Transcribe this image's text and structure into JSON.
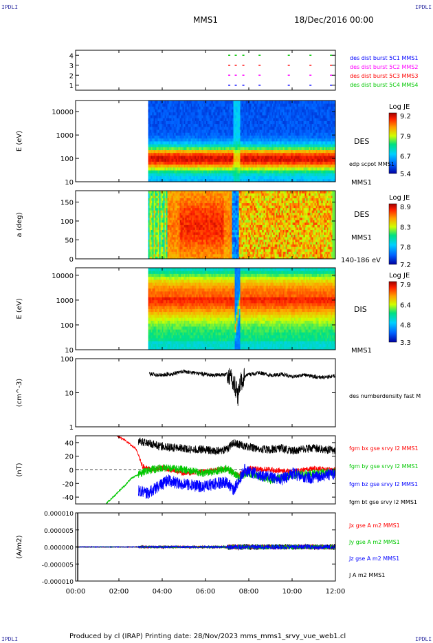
{
  "header": {
    "corner_tl": "IPDLI",
    "corner_tr": "IPDLI",
    "corner_bl": "IPDLI",
    "corner_br": "IPDLI",
    "mission": "MMS1",
    "date": "18/Dec/2016 00:00"
  },
  "footer": {
    "text": "Produced by cl (IRAP)   Printing date: 28/Nov/2023   mms_mms1_srvy_vue_web1.cl"
  },
  "colors": {
    "blue": "#0000ff",
    "magenta": "#ff00ff",
    "red": "#ff0000",
    "green": "#00c800",
    "black": "#000000"
  },
  "chart_data": [
    {
      "type": "scatter",
      "panel": "availability",
      "ylim": [
        0.5,
        4.5
      ],
      "yticks": [
        "1",
        "2",
        "3",
        "4"
      ],
      "labels": [
        {
          "text": "des dist burst 5C1 MMS1",
          "color": "#0000ff"
        },
        {
          "text": "des dist burst 5C2 MMS2",
          "color": "#ff00ff"
        },
        {
          "text": "des dist burst 5C3 MMS3",
          "color": "#ff0000"
        },
        {
          "text": "des dist burst 5C4 MMS4",
          "color": "#00c800"
        }
      ],
      "series": [
        {
          "name": "des dist burst 5C4 MMS4",
          "y": 4,
          "x": [
            7.05,
            7.35,
            7.7,
            8.45,
            9.8,
            10.8,
            11.75
          ]
        },
        {
          "name": "des dist burst 5C3 MMS3",
          "y": 3,
          "x": [
            7.05,
            7.35,
            7.7,
            8.45,
            9.8,
            10.8,
            11.75
          ]
        },
        {
          "name": "des dist burst 5C2 MMS2",
          "y": 2,
          "x": [
            7.05,
            7.35,
            7.7,
            8.45,
            9.8,
            10.8,
            11.75
          ]
        },
        {
          "name": "des dist burst 5C1 MMS1",
          "y": 1,
          "x": [
            7.05,
            7.35,
            7.7,
            8.45,
            9.8,
            10.8,
            11.75
          ]
        }
      ]
    },
    {
      "type": "heatmap",
      "panel": "des_energy",
      "ylabel": "E (eV)",
      "yscale": "log",
      "ylim": [
        10,
        30000
      ],
      "yticks": [
        "10",
        "100",
        "1000",
        "10000"
      ],
      "data_start_hour": 3.35,
      "side_label": "DES",
      "sub_label": "edp scpot MMS1",
      "bottom_label": "MMS1",
      "colorbar": {
        "title": "Log JE",
        "ticks": [
          "9.2",
          "7.9",
          "6.7",
          "5.4"
        ]
      },
      "peak_energy_eV": 100
    },
    {
      "type": "heatmap",
      "panel": "des_pitch",
      "ylabel": "a (deg)",
      "ylim": [
        0,
        180
      ],
      "yticks": [
        "0",
        "50",
        "100",
        "150"
      ],
      "data_start_hour": 3.35,
      "side_label": "DES",
      "sub_label": "MMS1",
      "bottom_label": "140-186 eV",
      "colorbar": {
        "title": "Log JE",
        "ticks": [
          "8.9",
          "8.3",
          "7.8",
          "7.2"
        ]
      }
    },
    {
      "type": "heatmap",
      "panel": "dis_energy",
      "ylabel": "E (eV)",
      "yscale": "log",
      "ylim": [
        10,
        20000
      ],
      "yticks": [
        "10",
        "100",
        "1000",
        "10000"
      ],
      "data_start_hour": 3.35,
      "side_label": "DIS",
      "bottom_label": "MMS1",
      "colorbar": {
        "title": "Log JE",
        "ticks": [
          "7.9",
          "6.4",
          "4.8",
          "3.3"
        ]
      },
      "peak_energy_eV": 1500
    },
    {
      "type": "line",
      "panel": "density",
      "ylabel": "(cm^-3)",
      "yscale": "log",
      "ylim": [
        1,
        100
      ],
      "yticks": [
        "1",
        "10",
        "100"
      ],
      "series": [
        {
          "name": "des numberdensity fast M",
          "color": "#000000",
          "x": [
            3.4,
            4.0,
            4.5,
            5.0,
            5.5,
            6.0,
            6.5,
            7.0,
            7.3,
            7.5,
            7.7,
            8.0,
            8.5,
            9.0,
            9.5,
            10.0,
            10.5,
            11.0,
            11.5,
            12.0
          ],
          "y": [
            35,
            33,
            36,
            42,
            38,
            34,
            33,
            35,
            20,
            8,
            25,
            35,
            38,
            32,
            35,
            30,
            33,
            30,
            28,
            32
          ]
        }
      ]
    },
    {
      "type": "line",
      "panel": "magnetic_field",
      "ylabel": "(nT)",
      "ylim": [
        -50,
        50
      ],
      "yticks": [
        "-40",
        "-20",
        "0",
        "20",
        "40"
      ],
      "series": [
        {
          "name": "fgm bx gse srvy l2 MMS1",
          "color": "#ff0000",
          "x": [
            1.9,
            2.2,
            2.5,
            2.8,
            3.1,
            3.5,
            4.0,
            5.0,
            6.0,
            7.0,
            7.5,
            8.0,
            9.0,
            10.0,
            11.0,
            12.0
          ],
          "y": [
            50,
            45,
            38,
            30,
            5,
            0,
            3,
            -5,
            -2,
            2,
            -8,
            2,
            0,
            -3,
            2,
            0
          ]
        },
        {
          "name": "fgm by gse srvy l2 MMS1",
          "color": "#00c800",
          "x": [
            1.4,
            1.8,
            2.2,
            2.6,
            3.0,
            3.5,
            4.0,
            5.0,
            6.0,
            7.0,
            7.5,
            8.0,
            9.0,
            10.0,
            11.0,
            12.0
          ],
          "y": [
            -50,
            -38,
            -25,
            -12,
            -5,
            0,
            3,
            0,
            -5,
            2,
            -10,
            -5,
            -15,
            -8,
            -5,
            -3
          ]
        },
        {
          "name": "fgm bz gse srvy l2 MMS1",
          "color": "#0000ff",
          "x": [
            2.9,
            3.3,
            3.8,
            4.3,
            4.8,
            5.3,
            5.8,
            6.5,
            7.0,
            7.3,
            7.8,
            8.5,
            9.0,
            9.5,
            10.0,
            10.5,
            11.0,
            11.5,
            12.0
          ],
          "y": [
            -30,
            -35,
            -25,
            -15,
            -20,
            -22,
            -25,
            -20,
            -18,
            -30,
            0,
            -8,
            -10,
            -15,
            -5,
            -10,
            -12,
            -8,
            -6
          ]
        },
        {
          "name": "fgm bt gse srvy l2 MMS1",
          "color": "#000000",
          "x": [
            2.9,
            3.3,
            3.8,
            4.3,
            4.8,
            5.3,
            5.8,
            6.5,
            7.0,
            7.3,
            7.8,
            8.5,
            9.0,
            9.5,
            10.0,
            10.5,
            11.0,
            11.5,
            12.0
          ],
          "y": [
            42,
            40,
            35,
            33,
            32,
            30,
            30,
            28,
            30,
            40,
            35,
            30,
            30,
            32,
            28,
            30,
            32,
            30,
            28
          ]
        }
      ]
    },
    {
      "type": "line",
      "panel": "current_density",
      "ylabel": "(A/m2)",
      "ylim": [
        -1e-05,
        1e-05
      ],
      "yticks": [
        "-0.000010",
        "-0.000005",
        "0.000000",
        "0.000005",
        "0.000010"
      ],
      "series": [
        {
          "name": "Jx gse A m2 MMS1",
          "color": "#ff0000",
          "x": [
            0.0,
            12.0
          ],
          "y": [
            0,
            0
          ]
        },
        {
          "name": "Jy gse A m2 MMS1",
          "color": "#00c800",
          "x": [
            0.0,
            12.0
          ],
          "y": [
            0,
            0
          ]
        },
        {
          "name": "Jz gse A m2 MMS1",
          "color": "#0000ff",
          "x": [
            0.0,
            12.0
          ],
          "y": [
            0,
            0
          ]
        },
        {
          "name": "J A m2 MMS1",
          "color": "#000000",
          "x": [
            0.0,
            12.0
          ],
          "y": [
            0,
            0
          ]
        }
      ],
      "spike_hour": 0.1
    },
    {
      "type": "axis",
      "panel": "time_axis",
      "xlim": [
        0,
        12
      ],
      "xticks": [
        "00:00",
        "02:00",
        "04:00",
        "06:00",
        "08:00",
        "10:00",
        "12:00"
      ]
    }
  ]
}
